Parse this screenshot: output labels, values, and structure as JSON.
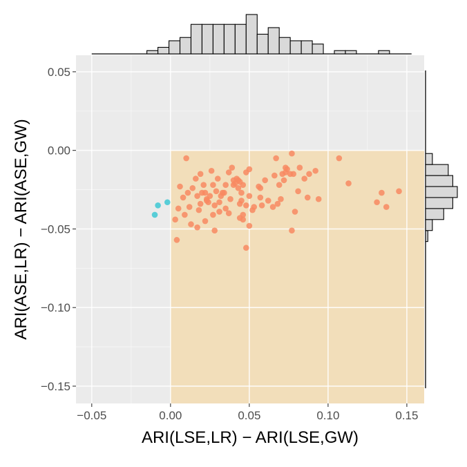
{
  "chart_data": {
    "type": "scatter",
    "title": "",
    "xlabel": "ARI(LSE,LR) − ARI(LSE,GW)",
    "ylabel": "ARI(ASE,LR) − ARI(ASE,GW)",
    "xlim": [
      -0.06,
      0.161
    ],
    "ylim": [
      -0.161,
      0.0605
    ],
    "x_ticks": [
      -0.05,
      0.0,
      0.05,
      0.1,
      0.15
    ],
    "x_tick_labels": [
      "−0.05",
      "0.00",
      "0.05",
      "0.10",
      "0.15"
    ],
    "y_ticks": [
      0.05,
      0.0,
      -0.05,
      -0.1,
      -0.15
    ],
    "y_tick_labels": [
      "0.05",
      "0.00",
      "−0.05",
      "−0.10",
      "−0.15"
    ],
    "grid": true,
    "legend": "none",
    "highlight_region": {
      "x": [
        0,
        0.161
      ],
      "y": [
        -0.161,
        0
      ],
      "color": "#F2DEBA"
    },
    "colors": {
      "panel_background": "#EBEBEB",
      "grid_major": "#FFFFFF",
      "series_orange": "#F88A62",
      "series_cyan": "#3EC8D3",
      "histogram_fill": "#D9D9D9"
    },
    "series": [
      {
        "color": "#F88A62",
        "points": [
          [
            0.01,
            -0.005
          ],
          [
            0.006,
            -0.023
          ],
          [
            0.014,
            -0.024
          ],
          [
            0.02,
            -0.027
          ],
          [
            0.008,
            -0.03
          ],
          [
            0.005,
            -0.037
          ],
          [
            0.012,
            -0.036
          ],
          [
            0.018,
            -0.038
          ],
          [
            0.023,
            -0.031
          ],
          [
            0.026,
            -0.013
          ],
          [
            0.027,
            -0.022
          ],
          [
            0.025,
            -0.029
          ],
          [
            0.031,
            -0.033
          ],
          [
            0.028,
            -0.035
          ],
          [
            0.022,
            -0.045
          ],
          [
            0.009,
            -0.041
          ],
          [
            0.013,
            -0.047
          ],
          [
            0.017,
            -0.049
          ],
          [
            0.003,
            -0.044
          ],
          [
            0.004,
            -0.057
          ],
          [
            0.028,
            -0.051
          ],
          [
            0.031,
            -0.039
          ],
          [
            0.035,
            -0.037
          ],
          [
            0.038,
            -0.031
          ],
          [
            0.04,
            -0.022
          ],
          [
            0.042,
            -0.018
          ],
          [
            0.043,
            -0.024
          ],
          [
            0.045,
            -0.027
          ],
          [
            0.048,
            -0.014
          ],
          [
            0.046,
            -0.041
          ],
          [
            0.046,
            -0.044
          ],
          [
            0.053,
            -0.036
          ],
          [
            0.057,
            -0.024
          ],
          [
            0.062,
            -0.032
          ],
          [
            0.066,
            -0.016
          ],
          [
            0.069,
            -0.022
          ],
          [
            0.07,
            -0.031
          ],
          [
            0.074,
            -0.012
          ],
          [
            0.077,
            -0.002
          ],
          [
            0.078,
            -0.015
          ],
          [
            0.077,
            -0.051
          ],
          [
            0.081,
            -0.026
          ],
          [
            0.082,
            -0.011
          ],
          [
            0.088,
            -0.015
          ],
          [
            0.092,
            -0.013
          ],
          [
            0.094,
            -0.031
          ],
          [
            0.107,
            -0.005
          ],
          [
            0.113,
            -0.021
          ],
          [
            0.131,
            -0.033
          ],
          [
            0.134,
            -0.027
          ],
          [
            0.137,
            -0.036
          ],
          [
            0.145,
            -0.026
          ],
          [
            0.048,
            -0.062
          ],
          [
            0.065,
            -0.036
          ],
          [
            0.068,
            -0.034
          ],
          [
            0.06,
            -0.019
          ],
          [
            0.039,
            -0.011
          ],
          [
            0.037,
            -0.014
          ],
          [
            0.03,
            -0.018
          ],
          [
            0.033,
            -0.027
          ],
          [
            0.044,
            -0.034
          ],
          [
            0.05,
            -0.029
          ],
          [
            0.056,
            -0.023
          ],
          [
            0.058,
            -0.035
          ],
          [
            0.05,
            -0.012
          ],
          [
            0.04,
            -0.019
          ],
          [
            0.035,
            -0.022
          ],
          [
            0.029,
            -0.026
          ],
          [
            0.021,
            -0.022
          ],
          [
            0.016,
            -0.018
          ],
          [
            0.019,
            -0.015
          ],
          [
            0.011,
            -0.027
          ],
          [
            0.017,
            -0.029
          ],
          [
            0.019,
            -0.034
          ],
          [
            0.024,
            -0.033
          ],
          [
            0.027,
            -0.041
          ],
          [
            0.037,
            -0.04
          ],
          [
            0.044,
            -0.043
          ],
          [
            0.05,
            -0.048
          ],
          [
            0.052,
            -0.038
          ],
          [
            0.057,
            -0.03
          ],
          [
            0.073,
            -0.014
          ],
          [
            0.076,
            -0.015
          ],
          [
            0.072,
            -0.019
          ],
          [
            0.085,
            -0.018
          ],
          [
            0.087,
            -0.03
          ],
          [
            0.079,
            -0.039
          ],
          [
            0.071,
            -0.015
          ],
          [
            0.073,
            -0.011
          ],
          [
            0.067,
            -0.005
          ],
          [
            0.041,
            -0.021
          ],
          [
            0.043,
            -0.019
          ],
          [
            0.045,
            -0.032
          ],
          [
            0.048,
            -0.035
          ],
          [
            0.034,
            -0.027
          ],
          [
            0.032,
            -0.029
          ],
          [
            0.022,
            -0.027
          ],
          [
            0.023,
            -0.032
          ],
          [
            0.046,
            -0.022
          ],
          [
            0.044,
            -0.02
          ]
        ]
      },
      {
        "color": "#3EC8D3",
        "points": [
          [
            -0.002,
            -0.033
          ],
          [
            -0.008,
            -0.035
          ],
          [
            -0.01,
            -0.041
          ]
        ]
      }
    ],
    "x_histogram": {
      "bin_start": -0.05,
      "bin_width": 0.007,
      "counts": [
        0,
        0,
        0,
        0,
        0,
        1,
        2,
        4,
        5,
        9,
        9,
        9,
        9,
        9,
        12,
        6,
        8,
        5,
        4,
        4,
        3,
        0,
        1,
        1,
        0,
        0,
        1,
        0,
        0
      ]
    },
    "y_histogram": {
      "bin_start": -0.065,
      "bin_width": 0.007,
      "counts": [
        0,
        1,
        3,
        8,
        12,
        14,
        12,
        10,
        3,
        0
      ]
    }
  }
}
